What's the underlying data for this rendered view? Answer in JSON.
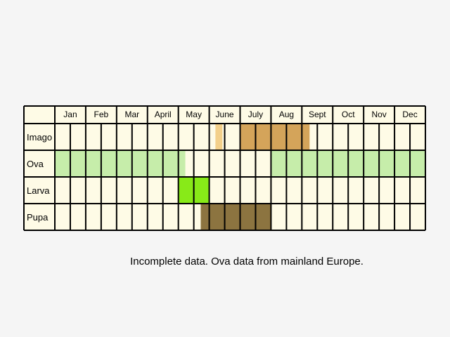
{
  "months": [
    "Jan",
    "Feb",
    "Mar",
    "April",
    "May",
    "June",
    "July",
    "Aug",
    "Sept",
    "Oct",
    "Nov",
    "Dec"
  ],
  "stages": [
    "Imago",
    "Ova",
    "Larva",
    "Pupa"
  ],
  "colors": {
    "background": "#f5f5f5",
    "cell": "#fefbe6",
    "grid": "#000000",
    "imago_light": "#f3d08a",
    "imago": "#d4a45a",
    "ova": "#c6edaa",
    "larva": "#88ea18",
    "pupa": "#8c7440"
  },
  "note": "Incomplete data. Ova data from mainland Europe."
}
